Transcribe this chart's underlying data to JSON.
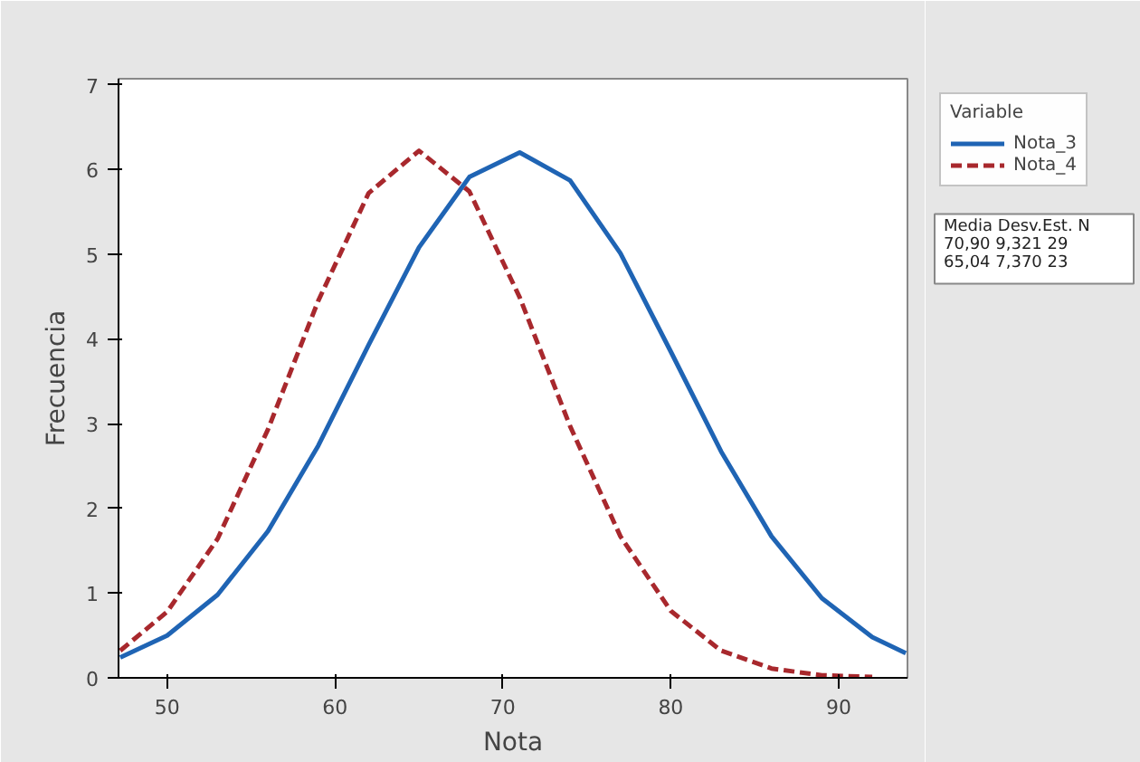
{
  "chart_data": {
    "type": "line",
    "xlabel": "Nota",
    "ylabel": "Frecuencia",
    "legend_title": "Variable",
    "xlim": [
      47.1,
      94.1
    ],
    "ylim": [
      0,
      7.07
    ],
    "xticks": [
      50,
      60,
      70,
      80,
      90
    ],
    "yticks": [
      0,
      1,
      2,
      3,
      4,
      5,
      6,
      7
    ],
    "grid": false,
    "legend": "right",
    "marker": "none",
    "series": [
      {
        "name": "Nota_3",
        "color": "#1f64b4",
        "line_style": "solid",
        "x": [
          47.2,
          50,
          53,
          56,
          59,
          62,
          65,
          68,
          71,
          74,
          77,
          80,
          83,
          86,
          89,
          92,
          94
        ],
        "values": [
          0.24,
          0.5,
          0.98,
          1.73,
          2.74,
          3.93,
          5.08,
          5.91,
          6.2,
          5.87,
          5.01,
          3.85,
          2.67,
          1.67,
          0.94,
          0.48,
          0.29
        ]
      },
      {
        "name": "Nota_4",
        "color": "#a8282d",
        "line_style": "dashed",
        "x": [
          47.2,
          50,
          53,
          56,
          59,
          62,
          65,
          68,
          71,
          74,
          77,
          80,
          83,
          86,
          89,
          92
        ],
        "values": [
          0.32,
          0.78,
          1.64,
          2.93,
          4.45,
          5.72,
          6.22,
          5.74,
          4.49,
          2.97,
          1.67,
          0.79,
          0.32,
          0.11,
          0.03,
          0.01
        ]
      }
    ],
    "annotations": [
      "Media   Desv.Est.   N",
      "70,90      9,321   29",
      "65,04      7,370   23"
    ]
  }
}
